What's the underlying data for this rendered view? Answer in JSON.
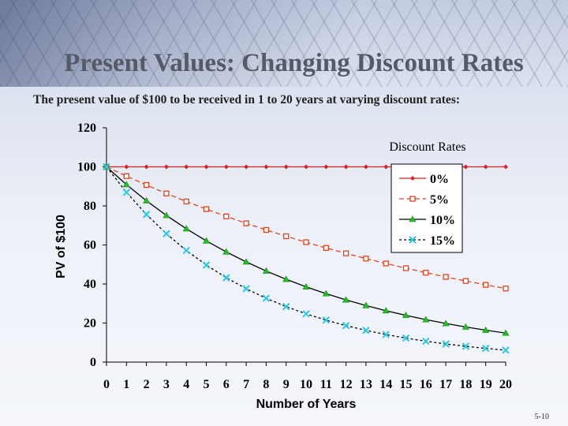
{
  "slide": {
    "title": "Present Values: Changing Discount Rates",
    "subtitle": "The present value of $100 to be received in 1 to 20 years at varying discount rates:",
    "slide_number": "5-10"
  },
  "chart_data": {
    "type": "line",
    "xlabel": "Number of Years",
    "ylabel": "PV of $100",
    "legend_title": "Discount Rates",
    "legend_position": "top-right",
    "grid": false,
    "x": [
      0,
      1,
      2,
      3,
      4,
      5,
      6,
      7,
      8,
      9,
      10,
      11,
      12,
      13,
      14,
      15,
      16,
      17,
      18,
      19,
      20
    ],
    "ylim": [
      0,
      120
    ],
    "yticks": [
      0,
      20,
      40,
      60,
      80,
      100,
      120
    ],
    "series": [
      {
        "name": "0%",
        "color": "#e02020",
        "dash": "solid",
        "marker": "diamond",
        "values": [
          100,
          100,
          100,
          100,
          100,
          100,
          100,
          100,
          100,
          100,
          100,
          100,
          100,
          100,
          100,
          100,
          100,
          100,
          100,
          100,
          100
        ]
      },
      {
        "name": "5%",
        "color": "#e8401c",
        "dash": "dashed",
        "marker": "open-square",
        "values": [
          100,
          95.24,
          90.7,
          86.38,
          82.27,
          78.35,
          74.62,
          71.07,
          67.68,
          64.46,
          61.39,
          58.47,
          55.68,
          53.03,
          50.51,
          48.1,
          45.81,
          43.63,
          41.55,
          39.57,
          37.69
        ]
      },
      {
        "name": "10%",
        "color": "#000000",
        "dash": "solid",
        "marker": "green-triangle",
        "values": [
          100,
          90.91,
          82.64,
          75.13,
          68.3,
          62.09,
          56.45,
          51.32,
          46.65,
          42.41,
          38.55,
          35.05,
          31.86,
          28.97,
          26.33,
          23.94,
          21.76,
          19.78,
          17.99,
          16.35,
          14.86
        ]
      },
      {
        "name": "15%",
        "color": "#000000",
        "dash": "dotted",
        "marker": "cyan-x",
        "values": [
          100,
          86.96,
          75.61,
          65.75,
          57.18,
          49.72,
          43.23,
          37.59,
          32.69,
          28.43,
          24.72,
          21.49,
          18.69,
          16.25,
          14.13,
          12.29,
          10.69,
          9.29,
          8.08,
          7.03,
          6.11
        ]
      }
    ]
  }
}
